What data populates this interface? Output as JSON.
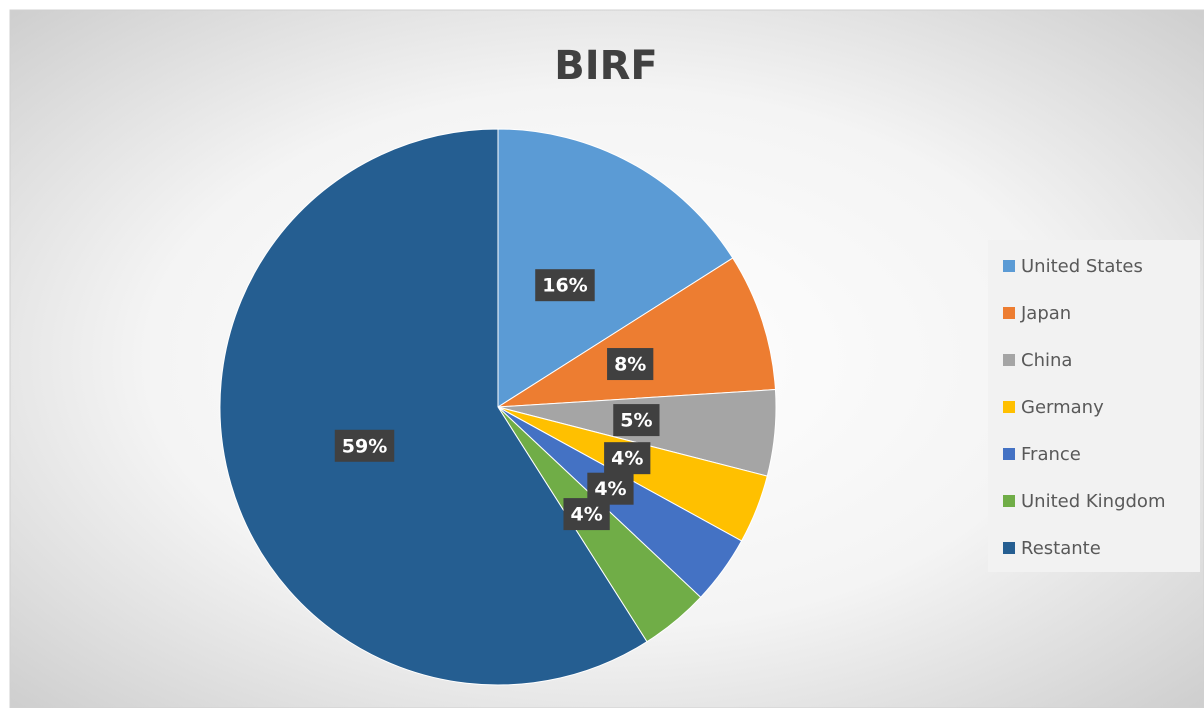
{
  "chart_data": {
    "type": "pie",
    "title": "BIRF",
    "categories": [
      "United States",
      "Japan",
      "China",
      "Germany",
      "France",
      "United Kingdom",
      "Restante"
    ],
    "values": [
      16,
      8,
      5,
      4,
      4,
      4,
      59
    ],
    "value_labels": [
      "16%",
      "8%",
      "5%",
      "4%",
      "4%",
      "4%",
      "59%"
    ],
    "colors": [
      "#5b9bd5",
      "#ed7d31",
      "#a5a5a5",
      "#ffc000",
      "#4472c4",
      "#70ad47",
      "#255e91"
    ],
    "legend": "right"
  }
}
